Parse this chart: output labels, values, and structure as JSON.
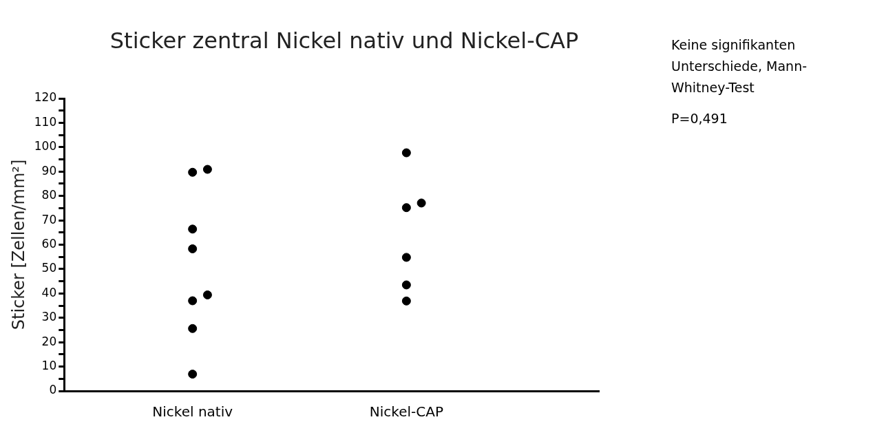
{
  "chart_data": {
    "type": "scatter",
    "title": "Sticker zentral Nickel nativ und Nickel-CAP",
    "ylabel": "Sticker [Zellen/mm²]",
    "categories": [
      "Nickel nativ",
      "Nickel-CAP"
    ],
    "series": [
      {
        "color": "#000000",
        "x": [
          "Nickel nativ",
          "Nickel nativ",
          "Nickel nativ",
          "Nickel nativ",
          "Nickel nativ",
          "Nickel nativ",
          "Nickel nativ",
          "Nickel nativ",
          "Nickel-CAP",
          "Nickel-CAP",
          "Nickel-CAP",
          "Nickel-CAP",
          "Nickel-CAP",
          "Nickel-CAP"
        ],
        "values": [
          89.7,
          90.9,
          66.4,
          58.3,
          37.0,
          39.4,
          25.6,
          6.9,
          97.7,
          75.2,
          77.1,
          54.8,
          43.5,
          36.9
        ]
      }
    ],
    "ylim": [
      0,
      120
    ],
    "yticks": [
      0,
      {
        "value": 5,
        "label": null
      },
      10,
      {
        "value": 15,
        "label": null
      },
      20,
      {
        "value": 25,
        "label": null
      },
      30,
      {
        "value": 35,
        "label": null
      },
      40,
      {
        "value": 45,
        "label": null
      },
      50,
      {
        "value": 55,
        "label": null
      },
      60,
      {
        "value": 65,
        "label": null
      },
      70,
      {
        "value": 75,
        "label": null
      },
      80,
      {
        "value": 85,
        "label": null
      },
      90,
      {
        "value": 95,
        "label": null
      },
      100,
      {
        "value": 105,
        "label": null
      },
      110,
      {
        "value": 115,
        "label": null
      },
      120
    ],
    "grid": false,
    "legend": false,
    "marker": "circle",
    "annotations": [
      "Keine signifikanten Unterschiede, Mann-Whitney-Test",
      "P=0,491"
    ]
  }
}
